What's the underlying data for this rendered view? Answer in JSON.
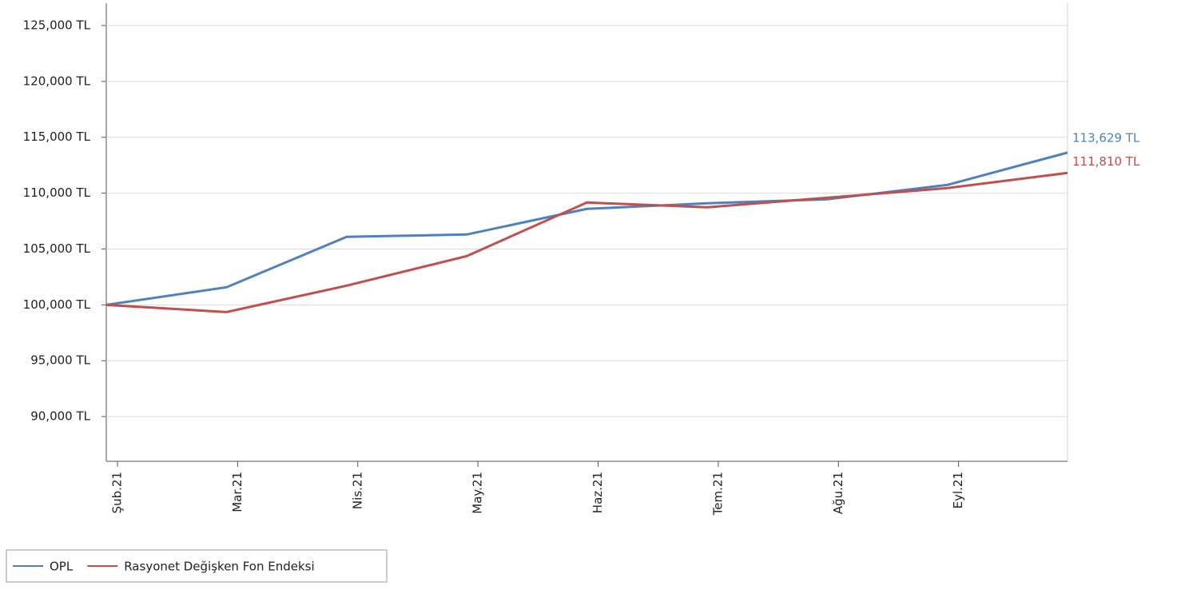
{
  "chart_data": {
    "type": "line",
    "categories": [
      "Şub.21",
      "Mar.21",
      "Nis.21",
      "May.21",
      "Haz.21",
      "Tem.21",
      "Ağu.21",
      "Eyl.21",
      null
    ],
    "series": [
      {
        "name": "OPL",
        "color": "#4f81bd",
        "values": [
          100000,
          101575,
          106085,
          106300,
          108590,
          109090,
          109447,
          110736,
          113629
        ],
        "value_labels": [
          null,
          null,
          null,
          null,
          null,
          null,
          null,
          null,
          "113,629 TL"
        ]
      },
      {
        "name": "Rasyonet Değişken Fon Endeksi",
        "color": "#c0504d",
        "values": [
          100000,
          99356,
          101718,
          104366,
          109161,
          108732,
          109590,
          110450,
          111810
        ],
        "value_labels": [
          null,
          null,
          null,
          null,
          null,
          null,
          null,
          null,
          "111,810 TL"
        ]
      }
    ],
    "ylim": [
      86000,
      127000
    ],
    "yticks": [
      {
        "value": 90000,
        "label": "90,000 TL"
      },
      {
        "value": 95000,
        "label": "95,000 TL"
      },
      {
        "value": 100000,
        "label": "100,000 TL"
      },
      {
        "value": 105000,
        "label": "105,000 TL"
      },
      {
        "value": 110000,
        "label": "110,000 TL"
      },
      {
        "value": 115000,
        "label": "115,000 TL"
      },
      {
        "value": 120000,
        "label": "120,000 TL"
      },
      {
        "value": 125000,
        "label": "125,000 TL"
      }
    ],
    "grid": true,
    "legend": "bottom-left"
  }
}
